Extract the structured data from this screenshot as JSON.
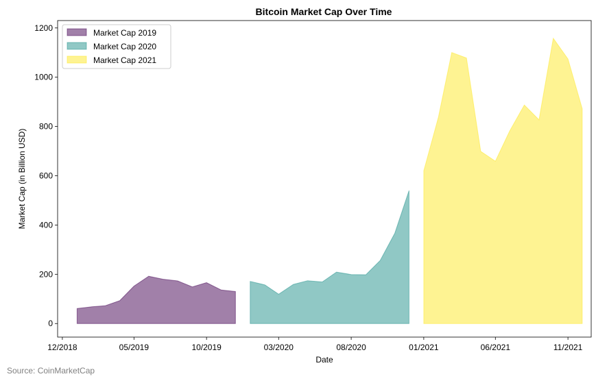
{
  "chart_data": {
    "type": "area",
    "title": "Bitcoin Market Cap Over Time",
    "xlabel": "Date",
    "ylabel": "Market Cap (in Billion USD)",
    "ylim": [
      -55,
      1230
    ],
    "yticks": [
      0,
      200,
      400,
      600,
      800,
      1000,
      1200
    ],
    "x_range": [
      "2018-11-21",
      "2021-12-20"
    ],
    "xticks": [
      {
        "date": "2018-12-01",
        "label": "12/2018"
      },
      {
        "date": "2019-05-01",
        "label": "05/2019"
      },
      {
        "date": "2019-10-01",
        "label": "10/2019"
      },
      {
        "date": "2020-03-01",
        "label": "03/2020"
      },
      {
        "date": "2020-08-01",
        "label": "08/2020"
      },
      {
        "date": "2021-01-01",
        "label": "01/2021"
      },
      {
        "date": "2021-06-01",
        "label": "06/2021"
      },
      {
        "date": "2021-11-01",
        "label": "11/2021"
      }
    ],
    "legend_position": "upper-left",
    "grid": false,
    "series": [
      {
        "name": "Market Cap 2019",
        "color": "#440154",
        "alpha": 0.5,
        "x": [
          "2019-01-01",
          "2019-02-01",
          "2019-03-01",
          "2019-04-01",
          "2019-05-01",
          "2019-06-01",
          "2019-07-01",
          "2019-08-01",
          "2019-09-01",
          "2019-10-01",
          "2019-11-01",
          "2019-12-01"
        ],
        "values": [
          61,
          68,
          72,
          93,
          152,
          192,
          180,
          173,
          149,
          166,
          136,
          130
        ]
      },
      {
        "name": "Market Cap 2020",
        "color": "#21918c",
        "alpha": 0.5,
        "x": [
          "2020-01-01",
          "2020-02-01",
          "2020-03-01",
          "2020-04-01",
          "2020-05-01",
          "2020-06-01",
          "2020-07-01",
          "2020-08-01",
          "2020-09-01",
          "2020-10-01",
          "2020-11-01",
          "2020-12-01"
        ],
        "values": [
          171,
          157,
          119,
          159,
          174,
          169,
          209,
          199,
          198,
          256,
          367,
          540
        ]
      },
      {
        "name": "Market Cap 2021",
        "color": "#fde725",
        "alpha": 0.5,
        "x": [
          "2021-01-01",
          "2021-02-01",
          "2021-03-01",
          "2021-04-01",
          "2021-05-01",
          "2021-06-01",
          "2021-07-01",
          "2021-08-01",
          "2021-09-01",
          "2021-10-01",
          "2021-11-01",
          "2021-12-01"
        ],
        "values": [
          620,
          838,
          1100,
          1078,
          699,
          659,
          781,
          887,
          827,
          1158,
          1074,
          872
        ]
      }
    ]
  },
  "source_text": "Source: CoinMarketCap"
}
